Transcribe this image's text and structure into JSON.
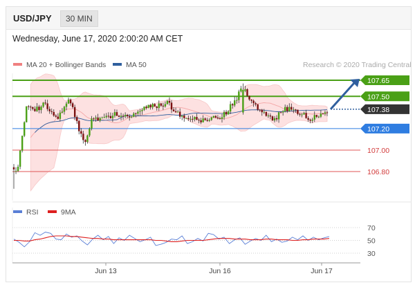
{
  "header": {
    "symbol": "USD/JPY",
    "timeframe": "30 MIN"
  },
  "timestamp": "Wednesday, June 17, 2020 2:00:20 AM CET",
  "legend": {
    "ma20_bb": {
      "label": "MA 20 + Bollinger Bands",
      "color": "#f08080"
    },
    "ma50": {
      "label": "MA 50",
      "color": "#2f5f9e"
    },
    "credit": "Research © 2020 Trading Central"
  },
  "rsi_legend": {
    "rsi": {
      "label": "RSI",
      "color": "#5a7fd6"
    },
    "ma9": {
      "label": "9MA",
      "color": "#dd1f1f"
    }
  },
  "chart_data": [
    {
      "type": "candlestick",
      "title": "",
      "ylim": [
        106.64,
        107.74
      ],
      "x_ticks": [
        "Jun 13",
        "Jun 16",
        "Jun 17"
      ],
      "levels": [
        {
          "value": 107.65,
          "label": "107.65",
          "style": "resistance",
          "color": "#4aa016"
        },
        {
          "value": 107.5,
          "label": "107.50",
          "style": "resistance",
          "color": "#4aa016"
        },
        {
          "value": 107.38,
          "label": "107.38",
          "style": "current",
          "color": "#333333"
        },
        {
          "value": 107.2,
          "label": "107.20",
          "style": "pivot",
          "color": "#2f7de1"
        },
        {
          "value": 107.0,
          "label": "107.00",
          "style": "support",
          "color": "#e05555"
        },
        {
          "value": 106.8,
          "label": "106.80",
          "style": "support",
          "color": "#e05555"
        }
      ],
      "scenario_arrow": {
        "from": 107.38,
        "to": 107.65,
        "color": "#2f5f9e"
      }
    },
    {
      "type": "line",
      "title": "",
      "ylim": [
        22,
        78
      ],
      "y_ticks": [
        70,
        50,
        30
      ],
      "series": [
        {
          "name": "RSI",
          "values": [
            52,
            47,
            40,
            48,
            62,
            58,
            63,
            61,
            52,
            51,
            60,
            55,
            57,
            49,
            43,
            52,
            58,
            51,
            56,
            45,
            54,
            50,
            58,
            53,
            48,
            51,
            55,
            42,
            44,
            47,
            52,
            51,
            57,
            45,
            48,
            53,
            49,
            61,
            59,
            52,
            55,
            45,
            51,
            54,
            44,
            49,
            53,
            50,
            58,
            48,
            52,
            47,
            49,
            55,
            51,
            57,
            50,
            55,
            51,
            54,
            56
          ]
        },
        {
          "name": "9MA",
          "values": [
            50,
            50,
            49,
            49,
            51,
            52,
            54,
            56,
            57,
            57,
            57,
            56,
            56,
            55,
            54,
            53,
            53,
            52,
            52,
            51,
            51,
            51,
            51,
            51,
            51,
            51,
            51,
            50,
            50,
            49,
            48,
            48,
            49,
            50,
            50,
            50,
            50,
            51,
            52,
            53,
            53,
            53,
            52,
            52,
            52,
            51,
            51,
            51,
            52,
            52,
            51,
            51,
            51,
            50,
            50,
            51,
            51,
            52,
            52,
            52,
            53
          ]
        }
      ]
    }
  ]
}
